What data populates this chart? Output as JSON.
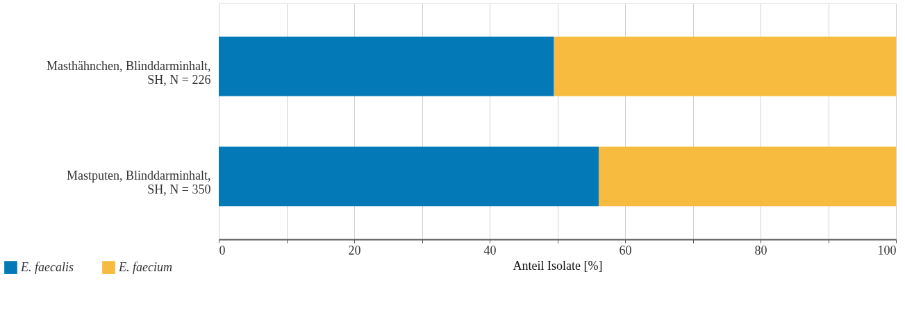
{
  "chart_data": {
    "type": "bar",
    "orientation": "horizontal",
    "stacked": true,
    "categories": [
      "Masthähnchen, Blinddarminhalt,\nSH, N = 226",
      "Mastputen, Blinddarminhalt,\nSH, N = 350"
    ],
    "series": [
      {
        "name": "E. faecalis",
        "color": "#0379b8",
        "values": [
          49.5,
          56.1
        ]
      },
      {
        "name": "E. faecium",
        "color": "#f7bc3f",
        "values": [
          50.5,
          43.9
        ]
      }
    ],
    "xlabel": "Anteil Isolate [%]",
    "xlim": [
      0,
      100
    ],
    "xticks": [
      0,
      {
        "value": 10,
        "label": null
      },
      20,
      {
        "value": 30,
        "label": null
      },
      40,
      {
        "value": 50,
        "label": null
      },
      60,
      {
        "value": 70,
        "label": null
      },
      80,
      {
        "value": 90,
        "label": null
      },
      100
    ],
    "grid": "x",
    "legend": "bottom left"
  }
}
